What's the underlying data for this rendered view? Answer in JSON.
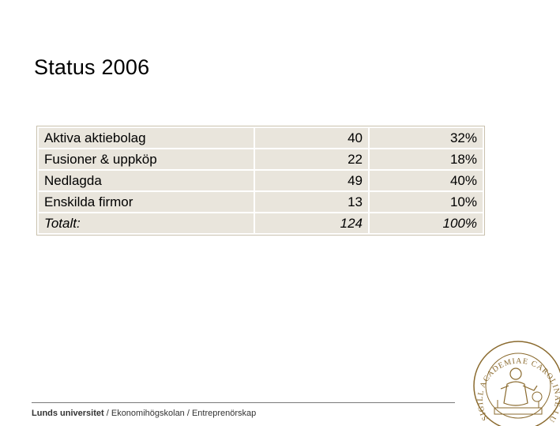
{
  "slide": {
    "title": "Status 2006"
  },
  "table": {
    "rows": [
      {
        "label": "Aktiva aktiebolag",
        "count": "40",
        "percent": "32%"
      },
      {
        "label": "Fusioner & uppköp",
        "count": "22",
        "percent": "18%"
      },
      {
        "label": "Nedlagda",
        "count": "49",
        "percent": "40%"
      },
      {
        "label": "Enskilda firmor",
        "count": "13",
        "percent": "10%"
      }
    ],
    "total": {
      "label": "Totalt:",
      "count": "124",
      "percent": "100%"
    }
  },
  "footer": {
    "university": "Lunds universitet",
    "path": " / Ekonomihögskolan / Entreprenörskap"
  },
  "logo": {
    "icon": "university-seal-icon",
    "text": "SIGILL ACADEMIAE CAROLINAE LUNDENSIS"
  },
  "colors": {
    "cell_background": "#e9e5dc",
    "table_border": "#c9c1ae",
    "seal": "#8a6a2e"
  }
}
